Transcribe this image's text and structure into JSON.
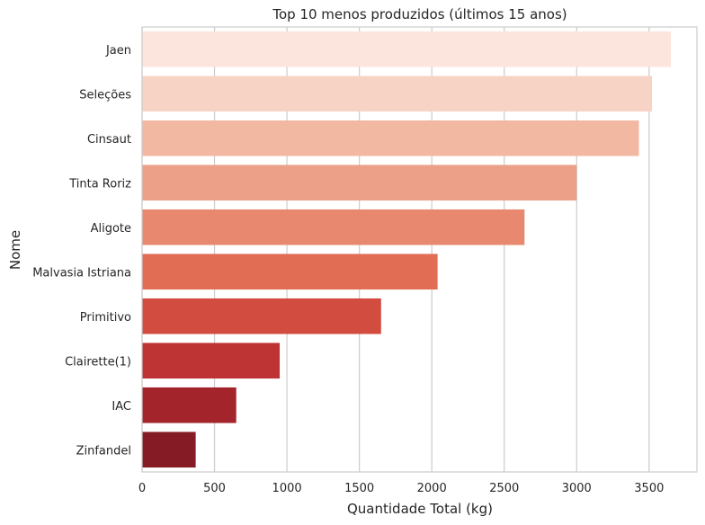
{
  "chart_data": {
    "type": "bar",
    "orientation": "horizontal",
    "title": "Top 10 menos produzidos (últimos 15 anos)",
    "xlabel": "Quantidade Total (kg)",
    "ylabel": "Nome",
    "categories": [
      "Jaen",
      "Seleções",
      "Cinsaut",
      "Tinta Roriz",
      "Aligote",
      "Malvasia Istriana",
      "Primitivo",
      "Clairette(1)",
      "IAC",
      "Zinfandel"
    ],
    "values": [
      3650,
      3520,
      3430,
      3000,
      2640,
      2040,
      1650,
      950,
      650,
      370
    ],
    "colors": [
      "#fce5dc",
      "#f7d3c5",
      "#f2b8a2",
      "#eca088",
      "#e8896f",
      "#e16d55",
      "#d24c40",
      "#be3434",
      "#a3252b",
      "#851c25"
    ],
    "xlim": [
      0,
      3830
    ],
    "xticks": [
      0,
      500,
      1000,
      1500,
      2000,
      2500,
      3000,
      3500
    ],
    "grid": true,
    "grid_axis": "x"
  }
}
